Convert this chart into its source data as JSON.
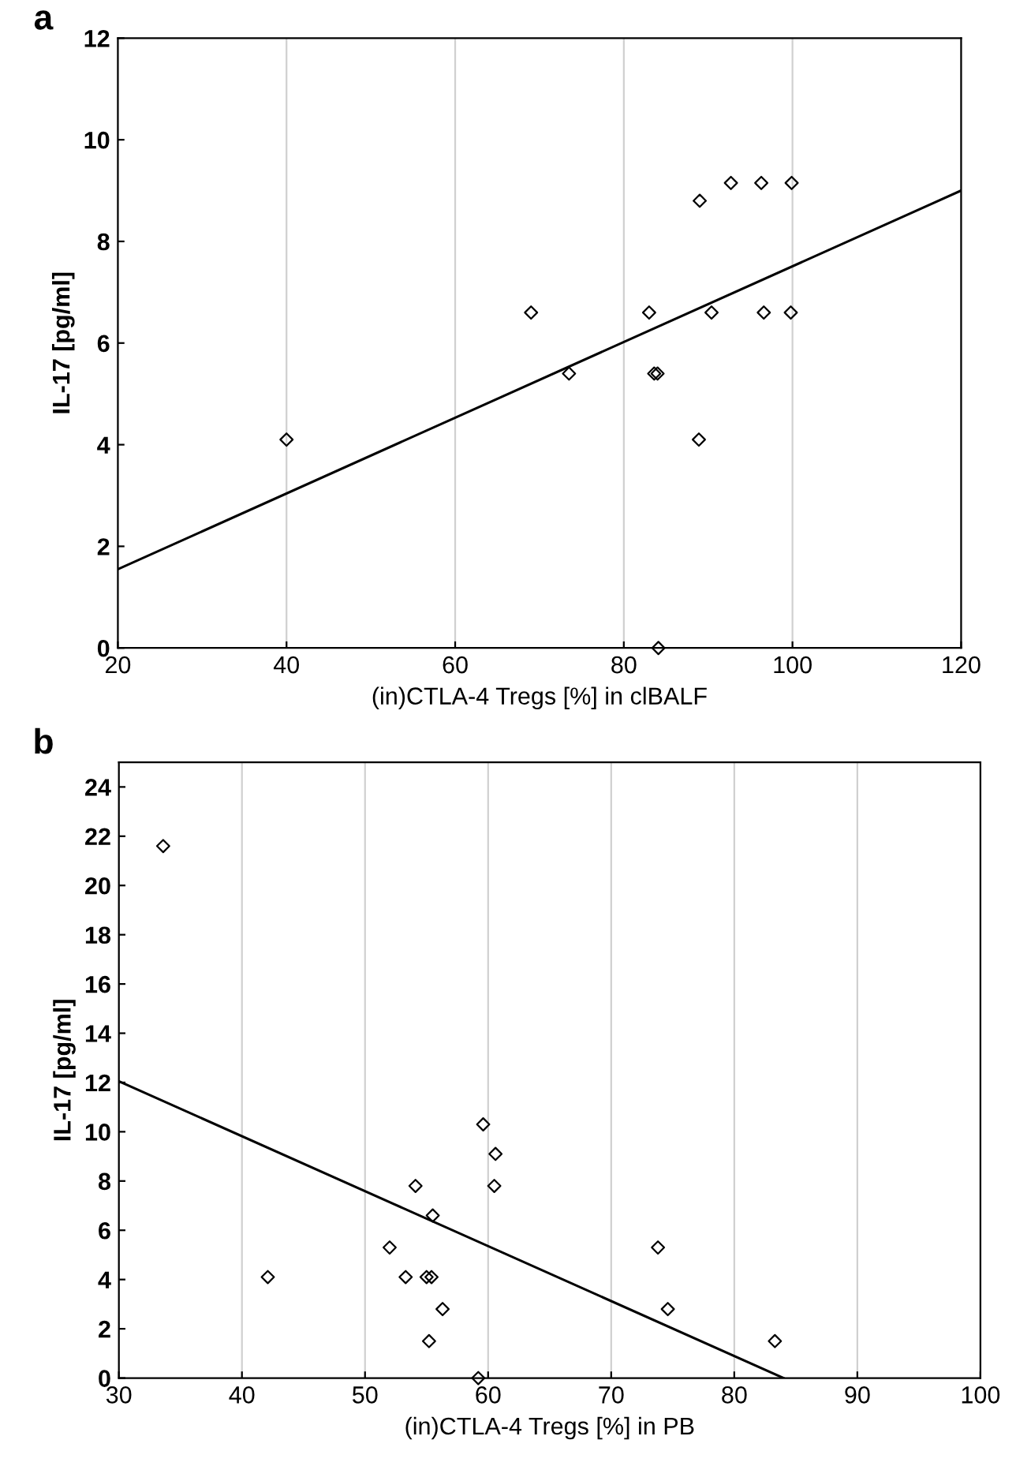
{
  "chart_data": [
    {
      "type": "scatter",
      "title": "a",
      "xlabel": "(in)CTLA-4 Tregs [%] in clBALF",
      "ylabel": "IL-17 [pg/ml]",
      "xlim": [
        20,
        120
      ],
      "xticks": [
        20,
        40,
        60,
        80,
        100,
        120
      ],
      "ylim": [
        0,
        12
      ],
      "yticks": [
        0,
        2,
        4,
        6,
        8,
        10,
        12
      ],
      "grid": "x",
      "series": [
        {
          "marker": "diamond",
          "color": "#000000",
          "x": [
            40,
            69.0,
            73.5,
            83.0,
            89.0,
            83.6,
            84.0,
            88.9,
            90.4,
            96.6,
            99.8,
            92.7,
            96.3,
            99.9,
            84.1
          ],
          "values": [
            4.1,
            6.6,
            5.4,
            6.6,
            8.8,
            5.4,
            5.4,
            4.1,
            6.6,
            6.6,
            6.6,
            9.15,
            9.15,
            9.15,
            0
          ]
        },
        {
          "type": "line",
          "marker": "none",
          "color": "#000000",
          "x": [
            20,
            120
          ],
          "values": [
            1.55,
            9.0
          ]
        }
      ]
    },
    {
      "type": "scatter",
      "title": "b",
      "xlabel": "(in)CTLA-4 Tregs [%] in PB",
      "ylabel": "IL-17 [pg/ml]",
      "xlim": [
        30,
        100
      ],
      "xticks": [
        30,
        40,
        50,
        60,
        70,
        80,
        90,
        100
      ],
      "ylim": [
        0,
        25
      ],
      "yticks": [
        0,
        2,
        4,
        6,
        8,
        10,
        12,
        14,
        16,
        18,
        20,
        22,
        24
      ],
      "grid": "x",
      "series": [
        {
          "marker": "diamond",
          "color": "#000000",
          "x": [
            33.6,
            42.1,
            52.0,
            53.3,
            54.1,
            55.5,
            55.0,
            55.4,
            56.3,
            55.2,
            59.6,
            60.6,
            60.5,
            59.2,
            73.8,
            74.6,
            83.3
          ],
          "values": [
            21.6,
            4.1,
            5.3,
            4.1,
            7.8,
            6.6,
            4.1,
            4.1,
            2.8,
            1.5,
            10.3,
            9.1,
            7.8,
            0,
            5.3,
            2.8,
            1.5
          ]
        },
        {
          "type": "line",
          "marker": "none",
          "color": "#000000",
          "x": [
            30,
            84.0
          ],
          "values": [
            12.05,
            0
          ]
        }
      ]
    }
  ]
}
